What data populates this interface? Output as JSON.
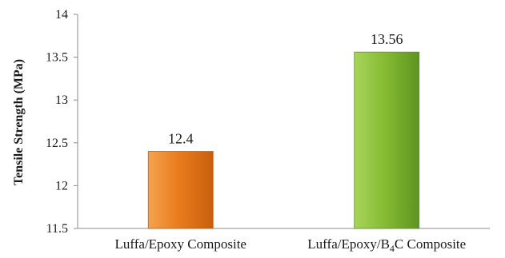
{
  "chart_data": {
    "type": "bar",
    "title": "",
    "xlabel": "",
    "ylabel": "Tensile Strength (MPa)",
    "categories": [
      "Luffa/Epoxy Composite",
      "Luffa/Epoxy/B4C Composite"
    ],
    "category_parts": [
      {
        "pre": "Luffa/Epoxy Composite",
        "sub": "",
        "post": ""
      },
      {
        "pre": "Luffa/Epoxy/B",
        "sub": "4",
        "post": "C Composite"
      }
    ],
    "values": [
      12.4,
      13.56
    ],
    "data_labels": [
      "12.4",
      "13.56"
    ],
    "ylim": [
      11.5,
      14
    ],
    "yticks": [
      11.5,
      12,
      12.5,
      13,
      13.5,
      14
    ],
    "ytick_labels": [
      "11.5",
      "12",
      "12.5",
      "13",
      "13.5",
      "14"
    ],
    "grid": false,
    "legend": "none",
    "colors": {
      "bar1_light": "#f5a34e",
      "bar1_mid": "#ea7d1e",
      "bar1_dark": "#c85f0d",
      "bar2_light": "#a8d45a",
      "bar2_mid": "#86bd34",
      "bar2_dark": "#5e9420",
      "axis": "#8c8c8c"
    }
  }
}
